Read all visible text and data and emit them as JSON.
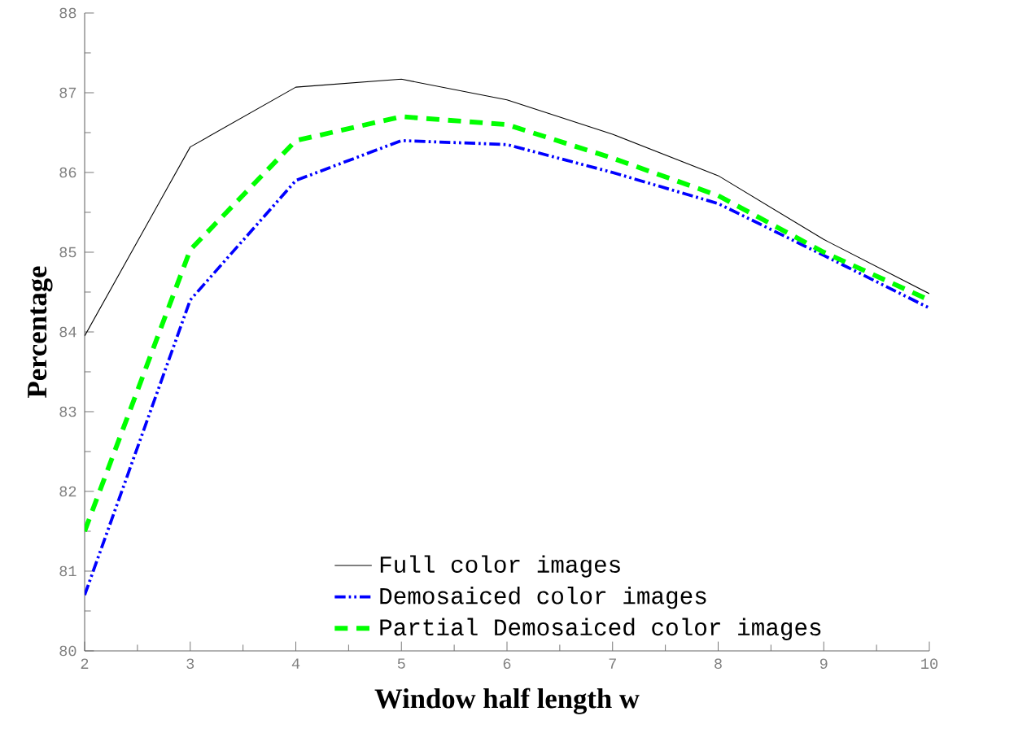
{
  "chart_data": {
    "type": "line",
    "xlabel": "Window half length w",
    "ylabel": "Percentage",
    "x": [
      2,
      3,
      4,
      5,
      6,
      7,
      8,
      9,
      10
    ],
    "series": [
      {
        "name": "Full color images",
        "color": "#000000",
        "line_style": "solid",
        "values": [
          83.95,
          86.32,
          87.07,
          87.17,
          86.91,
          86.48,
          85.96,
          85.16,
          84.48
        ]
      },
      {
        "name": "Demosaiced color images",
        "color": "#0000ff",
        "line_style": "dashdotdotted",
        "values": [
          80.7,
          84.4,
          85.9,
          86.4,
          86.35,
          86.0,
          85.61,
          84.96,
          84.3
        ]
      },
      {
        "name": "Partial Demosaiced color images",
        "color": "#00ff00",
        "line_style": "dashed",
        "values": [
          81.5,
          85.03,
          86.4,
          86.7,
          86.6,
          86.18,
          85.71,
          85.0,
          84.4
        ]
      }
    ],
    "xlim": [
      2,
      10
    ],
    "ylim": [
      80,
      88
    ],
    "xticks": [
      2,
      3,
      4,
      5,
      6,
      7,
      8,
      9,
      10
    ],
    "yticks": [
      80,
      81,
      82,
      83,
      84,
      85,
      86,
      87,
      88
    ],
    "grid": false,
    "legend": "bottom right",
    "marker": "none"
  }
}
